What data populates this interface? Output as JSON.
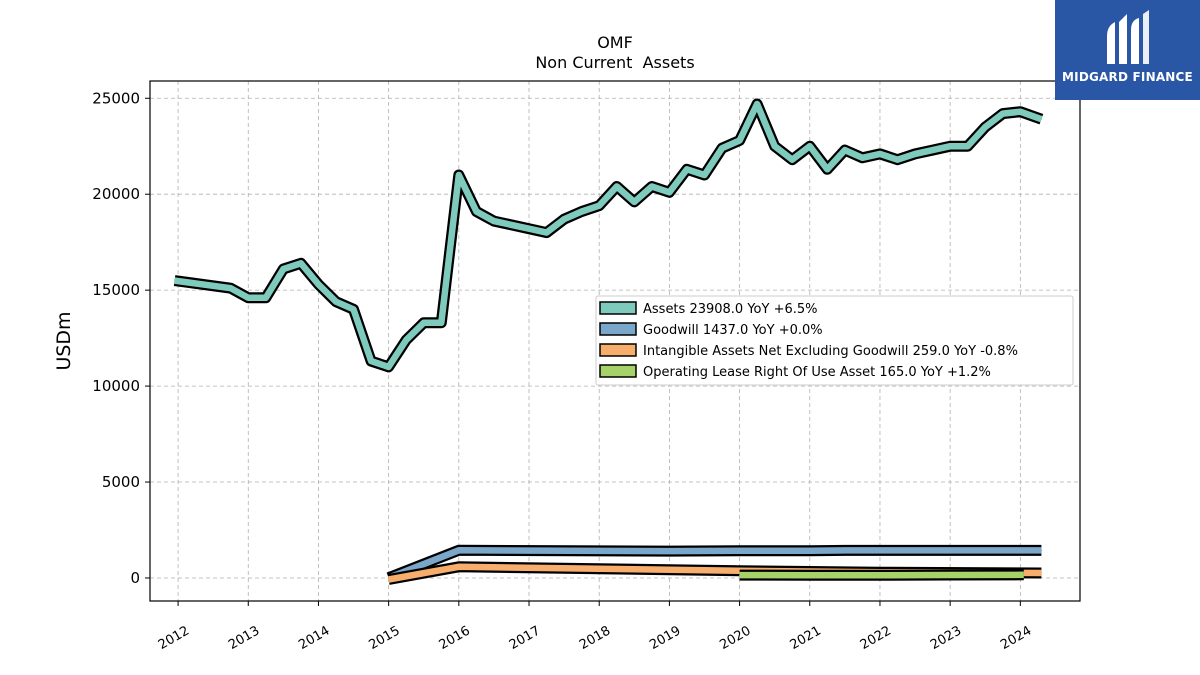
{
  "chart_data": {
    "type": "area",
    "title": "OMF",
    "subtitle": "Non Current  Assets",
    "ylabel": "USDm",
    "ylim": [
      -1200,
      25900
    ],
    "xlim": [
      2011.6,
      2024.85
    ],
    "yticks": [
      0,
      5000,
      10000,
      15000,
      20000,
      25000
    ],
    "xticks": [
      "2012",
      "2013",
      "2014",
      "2015",
      "2016",
      "2017",
      "2018",
      "2019",
      "2020",
      "2021",
      "2022",
      "2023",
      "2024"
    ],
    "grid": true,
    "legend_position": "center-right",
    "series": [
      {
        "name": "Assets",
        "legend": "Assets  23908.0 YoY +6.5%",
        "color": "#7ecbbd",
        "x": [
          2011.95,
          2012.75,
          2013.0,
          2013.25,
          2013.5,
          2013.75,
          2014.0,
          2014.25,
          2014.5,
          2014.75,
          2015.0,
          2015.25,
          2015.5,
          2015.75,
          2016.0,
          2016.25,
          2016.5,
          2016.75,
          2017.0,
          2017.25,
          2017.5,
          2017.75,
          2018.0,
          2018.25,
          2018.5,
          2018.75,
          2019.0,
          2019.25,
          2019.5,
          2019.75,
          2020.0,
          2020.25,
          2020.5,
          2020.75,
          2021.0,
          2021.25,
          2021.5,
          2021.75,
          2022.0,
          2022.25,
          2022.5,
          2022.75,
          2023.0,
          2023.25,
          2023.5,
          2023.75,
          2024.0,
          2024.3
        ],
        "values": [
          15500,
          15100,
          14600,
          14600,
          16100,
          16400,
          15300,
          14400,
          14000,
          11300,
          11000,
          12400,
          13300,
          13300,
          21000,
          19100,
          18600,
          18400,
          18200,
          18000,
          18700,
          19100,
          19400,
          20400,
          19600,
          20400,
          20100,
          21300,
          21000,
          22400,
          22800,
          24700,
          22500,
          21800,
          22500,
          21300,
          22300,
          21900,
          22100,
          21800,
          22100,
          22300,
          22500,
          22500,
          23500,
          24200,
          24300,
          23908
        ]
      },
      {
        "name": "Goodwill",
        "legend": "Goodwill  1437.0 YoY +0.0%",
        "color": "#7aa7c9",
        "x": [
          2015.0,
          2016.0,
          2019.0,
          2020.0,
          2021.0,
          2021.5,
          2024.3
        ],
        "values": [
          10,
          1440,
          1400,
          1422,
          1422,
          1437,
          1437
        ]
      },
      {
        "name": "Intangible Assets Net Excluding Goodwill",
        "legend": "Intangible Assets Net Excluding Goodwill  259.0 YoY -0.8%",
        "color": "#f7ae6c",
        "x": [
          2015.0,
          2016.0,
          2018.0,
          2020.0,
          2022.0,
          2024.3
        ],
        "values": [
          -80,
          580,
          480,
          380,
          300,
          259
        ]
      },
      {
        "name": "Operating Lease Right Of Use Asset",
        "legend": "Operating Lease Right Of Use Asset  165.0 YoY +1.2%",
        "color": "#a6d26a",
        "x": [
          2020.0,
          2021.0,
          2022.0,
          2023.0,
          2024.05
        ],
        "values": [
          150,
          145,
          140,
          155,
          165
        ]
      }
    ]
  },
  "brand": {
    "name": "MIDGARD FINANCE",
    "color": "#2a56a6",
    "icon": "midgard-logo-icon"
  }
}
